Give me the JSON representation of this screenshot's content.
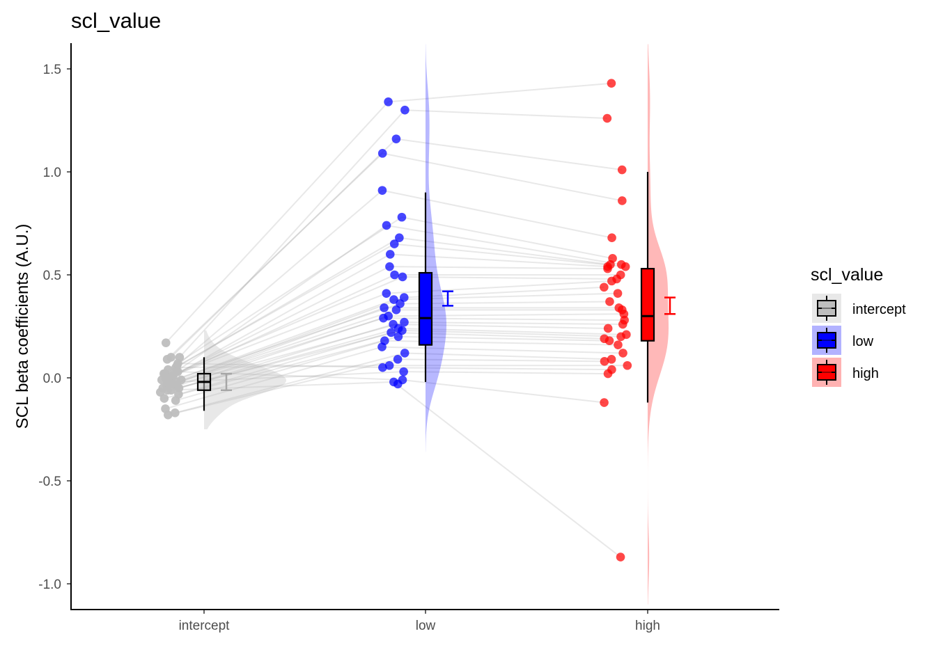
{
  "chart_data": {
    "type": "raincloud",
    "title": "scl_value",
    "xlabel": "",
    "ylabel": "SCL beta coefficients (A.U.)",
    "ylim": [
      -1.12,
      1.62
    ],
    "categories": [
      "intercept",
      "low",
      "high"
    ],
    "yticks": [
      {
        "value": 1.5,
        "label": "1.5"
      },
      {
        "value": 1.0,
        "label": "1.0"
      },
      {
        "value": 0.5,
        "label": "0.5"
      },
      {
        "value": 0.0,
        "label": "0.0"
      },
      {
        "value": -0.5,
        "label": "-0.5"
      },
      {
        "value": -1.0,
        "label": "-1.0"
      }
    ],
    "grid": false,
    "legend": {
      "title": "scl_value",
      "position": "right"
    },
    "series": [
      {
        "name": "intercept",
        "color": "#bebebe",
        "points": [
          0.17,
          0.1,
          0.1,
          0.09,
          0.06,
          0.04,
          0.03,
          0.02,
          0.02,
          0.01,
          0.01,
          0.0,
          0.0,
          -0.01,
          -0.01,
          -0.02,
          -0.02,
          -0.03,
          -0.03,
          -0.04,
          -0.04,
          -0.05,
          -0.05,
          -0.06,
          -0.07,
          -0.08,
          -0.1,
          -0.11,
          -0.15,
          -0.17,
          -0.18,
          0.05,
          0.07,
          -0.02,
          0.03,
          -0.06
        ],
        "box": {
          "ymin": -0.16,
          "q1": -0.06,
          "median": -0.02,
          "q3": 0.02,
          "ymax": 0.1
        },
        "ci": {
          "low": -0.06,
          "high": 0.02
        },
        "density_range": [
          -0.25,
          0.23
        ]
      },
      {
        "name": "low",
        "color": "#0000ff",
        "points": [
          1.34,
          1.3,
          1.16,
          1.09,
          0.91,
          0.78,
          0.74,
          0.68,
          0.65,
          0.6,
          0.54,
          0.5,
          0.49,
          0.41,
          0.39,
          0.38,
          0.36,
          0.34,
          0.33,
          0.3,
          0.29,
          0.27,
          0.26,
          0.24,
          0.23,
          0.22,
          0.2,
          0.18,
          0.15,
          0.12,
          0.09,
          0.06,
          0.05,
          0.03,
          -0.01,
          -0.02,
          -0.03
        ],
        "box": {
          "ymin": -0.02,
          "q1": 0.16,
          "median": 0.29,
          "q3": 0.51,
          "ymax": 0.9
        },
        "ci": {
          "low": 0.35,
          "high": 0.42
        },
        "density_range": [
          -0.36,
          1.62
        ]
      },
      {
        "name": "high",
        "color": "#ff0000",
        "points": [
          1.43,
          1.26,
          1.01,
          0.86,
          0.68,
          0.58,
          0.55,
          0.55,
          0.54,
          0.54,
          0.53,
          0.5,
          0.48,
          0.47,
          0.44,
          0.41,
          0.37,
          0.34,
          0.33,
          0.31,
          0.28,
          0.26,
          0.24,
          0.21,
          0.2,
          0.19,
          0.18,
          0.16,
          0.12,
          0.09,
          0.08,
          0.06,
          0.04,
          0.02,
          -0.12,
          -0.87
        ],
        "box": {
          "ymin": -0.12,
          "q1": 0.18,
          "median": 0.3,
          "q3": 0.53,
          "ymax": 1.0
        },
        "ci": {
          "low": 0.31,
          "high": 0.39
        },
        "density_range": [
          -1.1,
          1.62
        ]
      }
    ]
  }
}
